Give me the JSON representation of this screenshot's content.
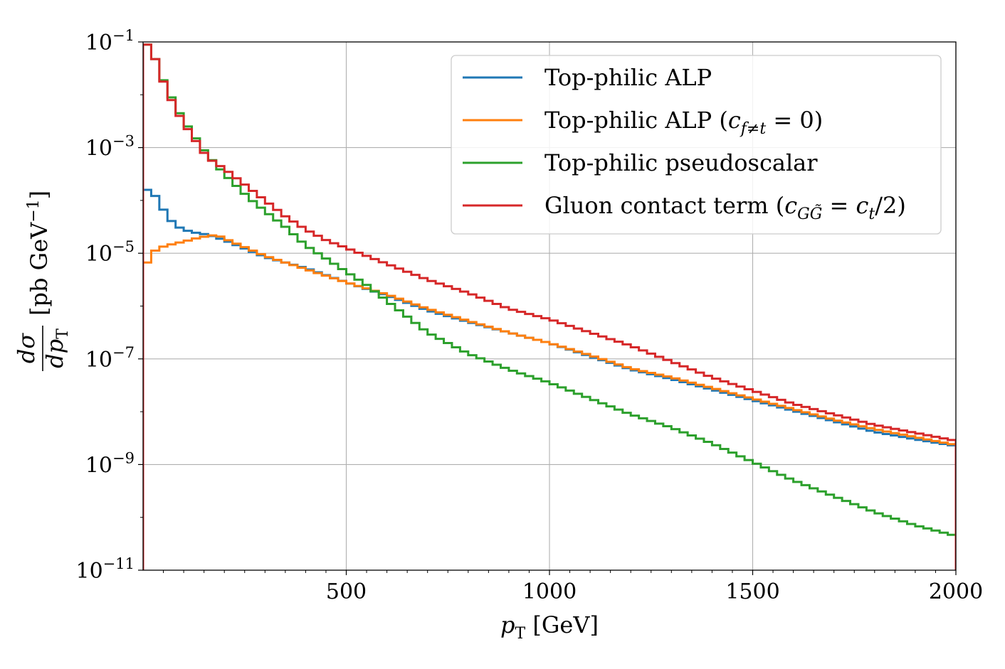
{
  "chart_data": {
    "type": "line",
    "subtype": "step-histogram",
    "title": "",
    "xlabel": "p_T [GeV]",
    "ylabel": "dσ/dp_T [pb GeV^-1]",
    "xlim": [
      0,
      2000
    ],
    "ylim_log10": [
      -11,
      -1
    ],
    "yscale": "log",
    "grid": true,
    "legend_position": "top-right",
    "x_ticks": [
      {
        "value": 500,
        "label": "500"
      },
      {
        "value": 1000,
        "label": "1000"
      },
      {
        "value": 1500,
        "label": "1500"
      },
      {
        "value": 2000,
        "label": "2000"
      }
    ],
    "y_ticks": [
      {
        "exp": -1,
        "base": "10",
        "sup": "−1"
      },
      {
        "exp": -3,
        "base": "10",
        "sup": "−3"
      },
      {
        "exp": -5,
        "base": "10",
        "sup": "−5"
      },
      {
        "exp": -7,
        "base": "10",
        "sup": "−7"
      },
      {
        "exp": -9,
        "base": "10",
        "sup": "−9"
      },
      {
        "exp": -11,
        "base": "10",
        "sup": "−11"
      }
    ],
    "bin_width": 20,
    "series": [
      {
        "name": "Top-philic ALP",
        "color": "#1f77b4",
        "anchors": [
          [
            0,
            -3.82
          ],
          [
            20,
            -3.78
          ],
          [
            40,
            -4.05
          ],
          [
            60,
            -4.3
          ],
          [
            80,
            -4.48
          ],
          [
            100,
            -4.55
          ],
          [
            120,
            -4.6
          ],
          [
            160,
            -4.65
          ],
          [
            200,
            -4.75
          ],
          [
            300,
            -5.07
          ],
          [
            400,
            -5.28
          ],
          [
            500,
            -5.55
          ],
          [
            600,
            -5.8
          ],
          [
            700,
            -6.08
          ],
          [
            800,
            -6.3
          ],
          [
            900,
            -6.5
          ],
          [
            1000,
            -6.7
          ],
          [
            1100,
            -6.95
          ],
          [
            1200,
            -7.2
          ],
          [
            1300,
            -7.38
          ],
          [
            1400,
            -7.58
          ],
          [
            1500,
            -7.78
          ],
          [
            1600,
            -7.98
          ],
          [
            1700,
            -8.18
          ],
          [
            1800,
            -8.38
          ],
          [
            1900,
            -8.52
          ],
          [
            2000,
            -8.65
          ]
        ]
      },
      {
        "name": "Top-philic ALP (c_{f≠t} = 0)",
        "color": "#ff7f0e",
        "anchors": [
          [
            0,
            -5.35
          ],
          [
            20,
            -5.0
          ],
          [
            40,
            -4.9
          ],
          [
            60,
            -4.85
          ],
          [
            100,
            -4.78
          ],
          [
            140,
            -4.7
          ],
          [
            180,
            -4.65
          ],
          [
            200,
            -4.72
          ],
          [
            300,
            -5.05
          ],
          [
            400,
            -5.3
          ],
          [
            500,
            -5.55
          ],
          [
            600,
            -5.78
          ],
          [
            700,
            -6.05
          ],
          [
            800,
            -6.28
          ],
          [
            900,
            -6.5
          ],
          [
            1000,
            -6.7
          ],
          [
            1100,
            -6.93
          ],
          [
            1200,
            -7.18
          ],
          [
            1300,
            -7.35
          ],
          [
            1400,
            -7.55
          ],
          [
            1500,
            -7.75
          ],
          [
            1600,
            -7.95
          ],
          [
            1700,
            -8.15
          ],
          [
            1800,
            -8.33
          ],
          [
            1900,
            -8.48
          ],
          [
            2000,
            -8.63
          ]
        ]
      },
      {
        "name": "Top-philic pseudoscalar",
        "color": "#2ca02c",
        "anchors": [
          [
            0,
            -1.0
          ],
          [
            20,
            -1.1
          ],
          [
            40,
            -1.55
          ],
          [
            60,
            -1.9
          ],
          [
            80,
            -2.2
          ],
          [
            100,
            -2.5
          ],
          [
            120,
            -2.7
          ],
          [
            140,
            -2.95
          ],
          [
            160,
            -3.15
          ],
          [
            200,
            -3.5
          ],
          [
            260,
            -3.95
          ],
          [
            300,
            -4.2
          ],
          [
            350,
            -4.5
          ],
          [
            400,
            -4.85
          ],
          [
            450,
            -5.1
          ],
          [
            500,
            -5.35
          ],
          [
            550,
            -5.6
          ],
          [
            600,
            -5.9
          ],
          [
            650,
            -6.2
          ],
          [
            700,
            -6.5
          ],
          [
            750,
            -6.7
          ],
          [
            800,
            -6.9
          ],
          [
            900,
            -7.2
          ],
          [
            1000,
            -7.45
          ],
          [
            1100,
            -7.75
          ],
          [
            1200,
            -8.05
          ],
          [
            1300,
            -8.3
          ],
          [
            1400,
            -8.6
          ],
          [
            1500,
            -8.95
          ],
          [
            1600,
            -9.3
          ],
          [
            1700,
            -9.6
          ],
          [
            1800,
            -9.9
          ],
          [
            1900,
            -10.15
          ],
          [
            2000,
            -10.35
          ]
        ]
      },
      {
        "name": "Gluon contact term (c_{GG̃} = c_t/2)",
        "color": "#d62728",
        "anchors": [
          [
            0,
            -1.0
          ],
          [
            20,
            -1.1
          ],
          [
            40,
            -1.55
          ],
          [
            60,
            -1.95
          ],
          [
            80,
            -2.25
          ],
          [
            100,
            -2.55
          ],
          [
            120,
            -2.75
          ],
          [
            140,
            -3.0
          ],
          [
            160,
            -3.2
          ],
          [
            200,
            -3.4
          ],
          [
            250,
            -3.7
          ],
          [
            300,
            -4.0
          ],
          [
            350,
            -4.3
          ],
          [
            400,
            -4.55
          ],
          [
            450,
            -4.75
          ],
          [
            500,
            -4.9
          ],
          [
            600,
            -5.2
          ],
          [
            700,
            -5.5
          ],
          [
            800,
            -5.75
          ],
          [
            900,
            -6.05
          ],
          [
            1000,
            -6.25
          ],
          [
            1100,
            -6.5
          ],
          [
            1200,
            -6.75
          ],
          [
            1300,
            -7.05
          ],
          [
            1400,
            -7.35
          ],
          [
            1500,
            -7.6
          ],
          [
            1600,
            -7.85
          ],
          [
            1700,
            -8.05
          ],
          [
            1800,
            -8.25
          ],
          [
            1900,
            -8.4
          ],
          [
            2000,
            -8.55
          ]
        ]
      }
    ]
  }
}
